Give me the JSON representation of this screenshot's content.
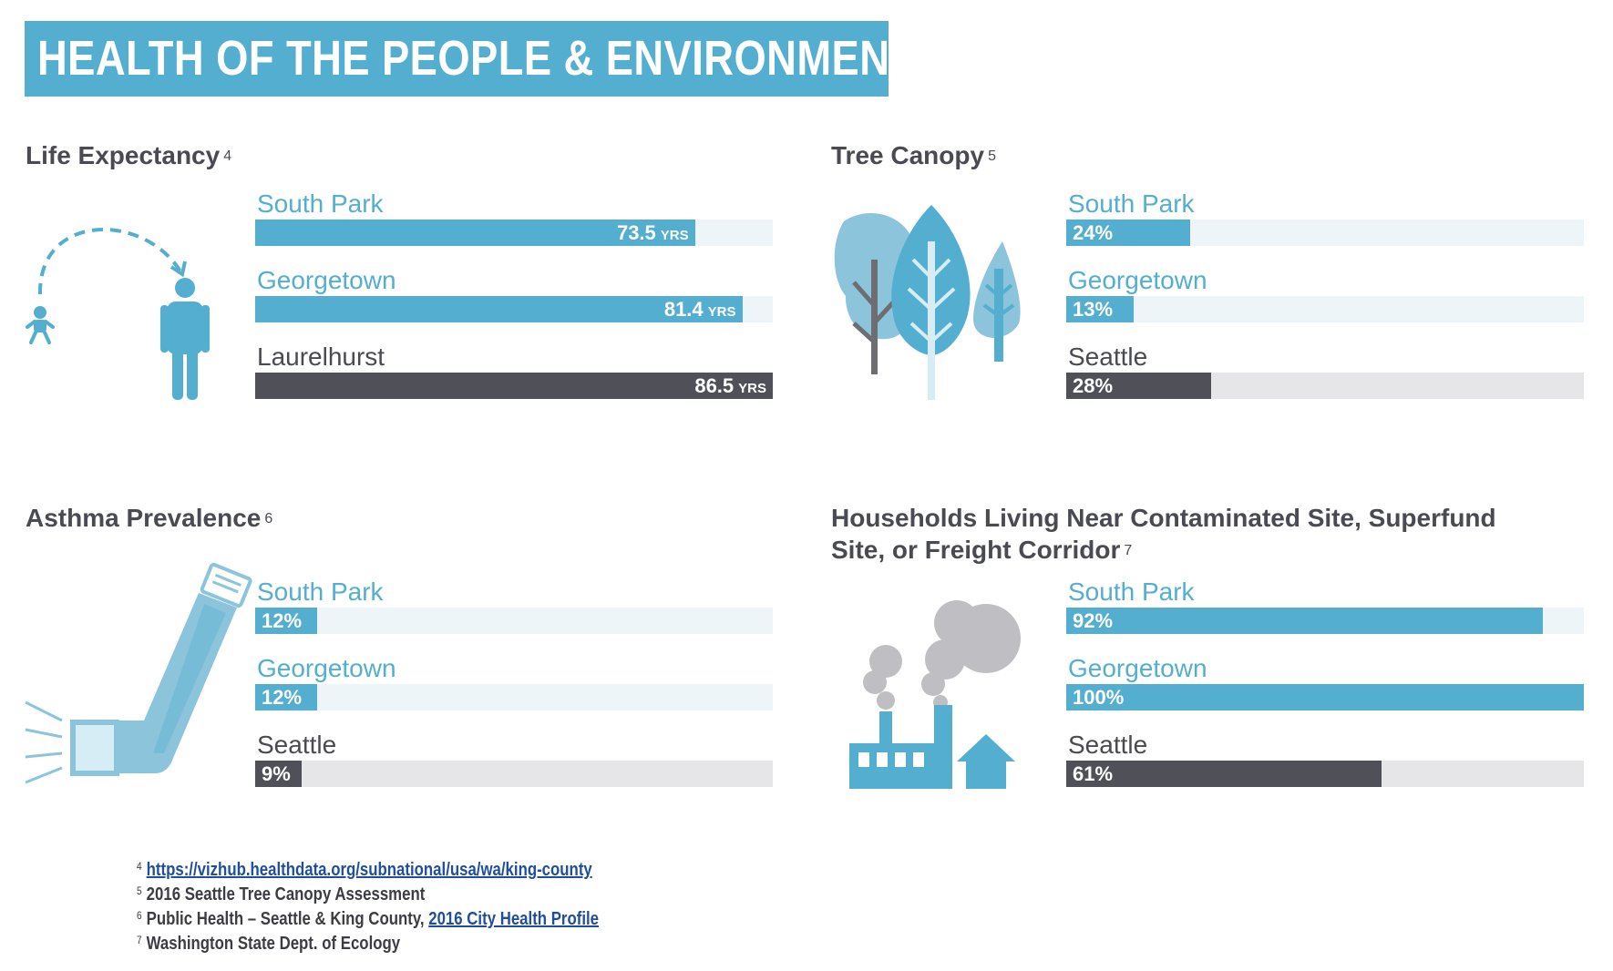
{
  "header": {
    "title": "HEALTH OF THE PEOPLE & ENVIRONMENT"
  },
  "colors": {
    "highlight": "#54aed0",
    "reference": "#505058",
    "highlight_track": "#eef5f8",
    "reference_track": "#e6e6e8",
    "banner": "#54aed0"
  },
  "chart_data": [
    {
      "type": "bar",
      "title": "Life Expectancy",
      "footnote_ref": "4",
      "unit": "YRS",
      "icon": "baby-to-adult-icon",
      "categories": [
        "South Park",
        "Georgetown",
        "Laurelhurst"
      ],
      "values": [
        73.5,
        81.4,
        86.5
      ],
      "display_values": [
        "73.5",
        "81.4",
        "86.5"
      ],
      "highlight": [
        true,
        true,
        false
      ],
      "xlim": [
        0,
        86.5
      ]
    },
    {
      "type": "bar",
      "title": "Tree Canopy",
      "footnote_ref": "5",
      "icon": "trees-icon",
      "categories": [
        "South Park",
        "Georgetown",
        "Seattle"
      ],
      "values": [
        24,
        13,
        28
      ],
      "display_values": [
        "24%",
        "13%",
        "28%"
      ],
      "highlight": [
        true,
        true,
        false
      ],
      "xlim": [
        0,
        100
      ]
    },
    {
      "type": "bar",
      "title": "Asthma Prevalence",
      "footnote_ref": "6",
      "icon": "inhaler-icon",
      "categories": [
        "South Park",
        "Georgetown",
        "Seattle"
      ],
      "values": [
        12,
        12,
        9
      ],
      "display_values": [
        "12%",
        "12%",
        "9%"
      ],
      "highlight": [
        true,
        true,
        false
      ],
      "xlim": [
        0,
        100
      ]
    },
    {
      "type": "bar",
      "title": "Households Living Near Contaminated Site, Superfund Site, or Freight Corridor",
      "footnote_ref": "7",
      "icon": "factory-house-icon",
      "categories": [
        "South Park",
        "Georgetown",
        "Seattle"
      ],
      "values": [
        92,
        100,
        61
      ],
      "display_values": [
        "92%",
        "100%",
        "61%"
      ],
      "highlight": [
        true,
        true,
        false
      ],
      "xlim": [
        0,
        100
      ]
    }
  ],
  "footnotes": [
    {
      "num": "4",
      "text": "",
      "link": "https://vizhub.healthdata.org/subnational/usa/wa/king-county"
    },
    {
      "num": "5",
      "text": "2016 Seattle Tree Canopy Assessment",
      "link": ""
    },
    {
      "num": "6",
      "text": "Public Health – Seattle & King County, ",
      "link": "2016 City Health Profile "
    },
    {
      "num": "7",
      "text": "Washington State Dept. of Ecology",
      "link": ""
    }
  ]
}
